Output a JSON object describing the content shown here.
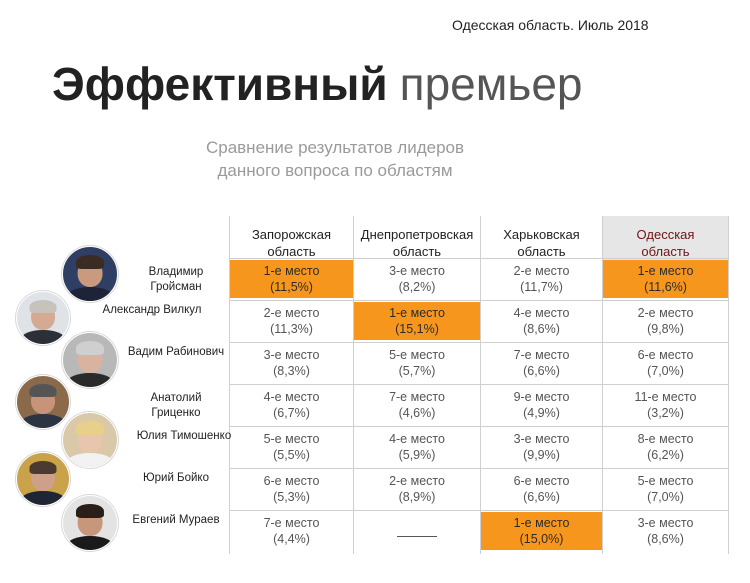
{
  "header": {
    "region_date": "Одесская область. Июль 2018",
    "title_bold": "Эффективный",
    "title_light": "премьер",
    "subtitle_line1": "Сравнение результатов лидеров",
    "subtitle_line2": "данного вопроса по областям"
  },
  "colors": {
    "highlight": "#f7961d",
    "odessa_header_bg": "#e6e6e6",
    "odessa_header_text": "#6e1414",
    "grid_line": "#cfcfcf"
  },
  "columns": [
    {
      "line1": "Запорожская",
      "line2": "область"
    },
    {
      "line1": "Днепропетровская",
      "line2": "область"
    },
    {
      "line1": "Харьковская",
      "line2": "область"
    },
    {
      "line1": "Одесская",
      "line2": "область"
    }
  ],
  "rows": [
    {
      "name_line1": "Владимир",
      "name_line2": "Гройсман",
      "cells": [
        {
          "place": "1-е место",
          "pct": "(11,5%)",
          "hl": true
        },
        {
          "place": "3-е место",
          "pct": "(8,2%)",
          "hl": false
        },
        {
          "place": "2-е место",
          "pct": "(11,7%)",
          "hl": false
        },
        {
          "place": "1-е место",
          "pct": "(11,6%)",
          "hl": true
        }
      ]
    },
    {
      "name_line1": "Александр Вилкул",
      "name_line2": "",
      "cells": [
        {
          "place": "2-е место",
          "pct": "(11,3%)",
          "hl": false
        },
        {
          "place": "1-е место",
          "pct": "(15,1%)",
          "hl": true
        },
        {
          "place": "4-е место",
          "pct": "(8,6%)",
          "hl": false
        },
        {
          "place": "2-е место",
          "pct": "(9,8%)",
          "hl": false
        }
      ]
    },
    {
      "name_line1": "Вадим Рабинович",
      "name_line2": "",
      "cells": [
        {
          "place": "3-е место",
          "pct": "(8,3%)",
          "hl": false
        },
        {
          "place": "5-е место",
          "pct": "(5,7%)",
          "hl": false
        },
        {
          "place": "7-е место",
          "pct": "(6,6%)",
          "hl": false
        },
        {
          "place": "6-е место",
          "pct": "(7,0%)",
          "hl": false
        }
      ]
    },
    {
      "name_line1": "Анатолий",
      "name_line2": "Гриценко",
      "cells": [
        {
          "place": "4-е место",
          "pct": "(6,7%)",
          "hl": false
        },
        {
          "place": "7-е место",
          "pct": "(4,6%)",
          "hl": false
        },
        {
          "place": "9-е место",
          "pct": "(4,9%)",
          "hl": false
        },
        {
          "place": "11-е место",
          "pct": "(3,2%)",
          "hl": false
        }
      ]
    },
    {
      "name_line1": "Юлия Тимошенко",
      "name_line2": "",
      "cells": [
        {
          "place": "5-е место",
          "pct": "(5,5%)",
          "hl": false
        },
        {
          "place": "4-е место",
          "pct": "(5,9%)",
          "hl": false
        },
        {
          "place": "3-е место",
          "pct": "(9,9%)",
          "hl": false
        },
        {
          "place": "8-е место",
          "pct": "(6,2%)",
          "hl": false
        }
      ]
    },
    {
      "name_line1": "Юрий Бойко",
      "name_line2": "",
      "cells": [
        {
          "place": "6-е место",
          "pct": "(5,3%)",
          "hl": false
        },
        {
          "place": "2-е место",
          "pct": "(8,9%)",
          "hl": false
        },
        {
          "place": "6-е место",
          "pct": "(6,6%)",
          "hl": false
        },
        {
          "place": "5-е место",
          "pct": "(7,0%)",
          "hl": false
        }
      ]
    },
    {
      "name_line1": "Евгений Мураев",
      "name_line2": "",
      "cells": [
        {
          "place": "7-е место",
          "pct": "(4,4%)",
          "hl": false
        },
        {
          "place": "",
          "pct": "",
          "hl": false,
          "empty": true
        },
        {
          "place": "1-е место",
          "pct": "(15,0%)",
          "hl": true
        },
        {
          "place": "3-е место",
          "pct": "(8,6%)",
          "hl": false
        }
      ]
    }
  ],
  "photos": [
    {
      "name": "photo-groisman",
      "bg": "#2f3f63",
      "face": "#c99a7e",
      "hair": "#3a2c22",
      "suit": "#1d2438"
    },
    {
      "name": "photo-vilkul",
      "bg": "#dfe3e8",
      "face": "#d4aa92",
      "hair": "#c7c2bb",
      "suit": "#2b2f38"
    },
    {
      "name": "photo-rabinovich",
      "bg": "#b8b8b8",
      "face": "#d8b3a0",
      "hair": "#cfcfcf",
      "suit": "#2a2a2a"
    },
    {
      "name": "photo-gritsenko",
      "bg": "#8a6a4a",
      "face": "#c89479",
      "hair": "#555555",
      "suit": "#2b3443"
    },
    {
      "name": "photo-tymoshenko",
      "bg": "#d9c9a8",
      "face": "#e8c5ad",
      "hair": "#e8d08a",
      "suit": "#f2f2f2"
    },
    {
      "name": "photo-boyko",
      "bg": "#c9a24a",
      "face": "#cfa089",
      "hair": "#4a3a30",
      "suit": "#1e2535"
    },
    {
      "name": "photo-muraev",
      "bg": "#e3e3e3",
      "face": "#c8967a",
      "hair": "#2a1f18",
      "suit": "#1a1a1a"
    }
  ]
}
